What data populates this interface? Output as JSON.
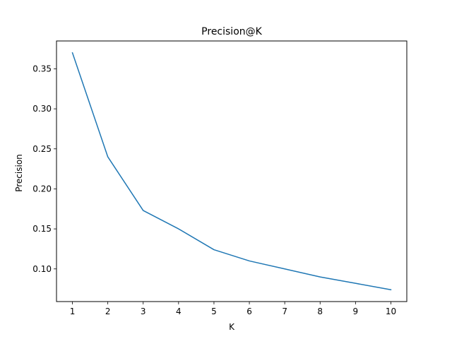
{
  "chart_data": {
    "type": "line",
    "title": "Precision@K",
    "xlabel": "K",
    "ylabel": "Precision",
    "x": [
      1,
      2,
      3,
      4,
      5,
      6,
      7,
      8,
      9,
      10
    ],
    "series": [
      {
        "values": [
          0.37,
          0.24,
          0.173,
          0.15,
          0.124,
          0.11,
          0.1,
          0.09,
          0.082,
          0.074
        ]
      }
    ],
    "xticks": [
      "1",
      "2",
      "3",
      "4",
      "5",
      "6",
      "7",
      "8",
      "9",
      "10"
    ],
    "yticks": [
      0.1,
      0.15,
      0.2,
      0.25,
      0.3,
      0.35
    ],
    "ytick_labels": [
      "0.10",
      "0.15",
      "0.20",
      "0.25",
      "0.30",
      "0.35"
    ],
    "xlim": [
      0.55,
      10.45
    ],
    "ylim": [
      0.0592,
      0.3848
    ],
    "grid": false,
    "line_color": "#1f77b4"
  }
}
